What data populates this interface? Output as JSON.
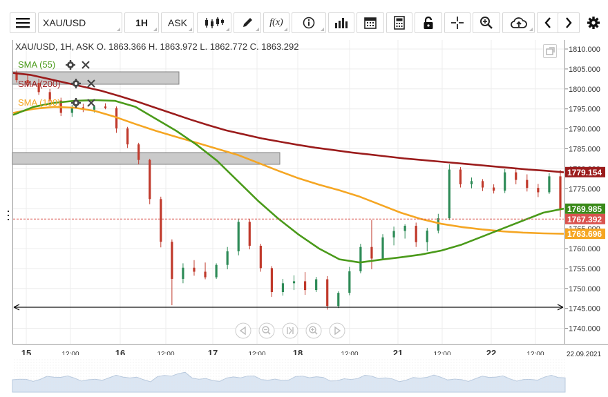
{
  "toolbar": {
    "symbol": "XAU/USD",
    "timeframe": "1H",
    "price_side": "ASK",
    "icons": [
      "menu-icon",
      "candlestick-icon",
      "draw-icon",
      "function-icon",
      "info-icon",
      "bar-volume-icon",
      "calendar-icon",
      "calculator-icon",
      "lock-icon",
      "crosshair-icon",
      "zoom-icon",
      "cloud-upload-icon",
      "arrow-left-icon",
      "arrow-right-icon",
      "gear-icon"
    ]
  },
  "info_line": "XAU/USD, 1H, ASK   O. 1863.366 H. 1863.972 L. 1862.772 C. 1863.292",
  "indicators": [
    {
      "label": "SMA (55)",
      "color": "#4a9a1a"
    },
    {
      "label": "SMA (200)",
      "color": "#9b1c1c"
    },
    {
      "label": "SMA (100)",
      "color": "#f5a623"
    }
  ],
  "chart_data": {
    "type": "candlestick",
    "y_axis": {
      "ticks": [
        "1810.000",
        "1805.000",
        "1800.000",
        "1795.000",
        "1790.000",
        "1785.000",
        "1780.000",
        "1775.000",
        "1770.000",
        "1765.000",
        "1760.000",
        "1755.000",
        "1750.000",
        "1745.000",
        "1740.000"
      ],
      "range": [
        1736.5,
        1812.3
      ]
    },
    "x_axis": {
      "ticks": [
        "15",
        "12:00",
        "16",
        "12:00",
        "17",
        "12:00",
        "18",
        "12:00",
        "21",
        "12:00",
        "22",
        "12:00",
        "22.09.2021"
      ]
    },
    "price_tags": [
      {
        "value": "1779.154",
        "bg": "#9b1c1c"
      },
      {
        "value": "1769.985",
        "bg": "#3a8a1a"
      },
      {
        "value": "1767.392",
        "bg": "#d9534f"
      },
      {
        "value": "1763.696",
        "bg": "#f5a623"
      }
    ],
    "horizontal_line_level": 1745.3,
    "dashed_line_level": 1767.392,
    "sma_200": [
      1804,
      1803.5,
      1802.5,
      1801.5,
      1800.5,
      1799.5,
      1798.2,
      1796.8,
      1795.3,
      1793.8,
      1792.3,
      1790.9,
      1789.6,
      1788.6,
      1787.6,
      1786.8,
      1786,
      1785.3,
      1784.7,
      1784.1,
      1783.6,
      1783.1,
      1782.6,
      1782.2,
      1781.8,
      1781.4,
      1781,
      1780.6,
      1780.2,
      1779.8,
      1779.5,
      1779.1
    ],
    "sma_100": [
      1794,
      1795,
      1795.5,
      1795.3,
      1794.5,
      1793,
      1791.2,
      1789.5,
      1788,
      1786.5,
      1785,
      1783.5,
      1781.5,
      1779.5,
      1777.6,
      1776,
      1774.6,
      1773,
      1771,
      1769,
      1767.4,
      1766.2,
      1765.4,
      1764.8,
      1764.3,
      1764,
      1763.8,
      1763.7
    ],
    "sma_55": [
      1793.5,
      1795.5,
      1796.5,
      1797,
      1797.2,
      1797,
      1795.5,
      1792.5,
      1789.5,
      1786,
      1782,
      1777,
      1772,
      1767.5,
      1763.5,
      1760,
      1757.3,
      1756.5,
      1757.2,
      1757.8,
      1758.5,
      1759.5,
      1761,
      1763,
      1765,
      1767,
      1769,
      1770
    ],
    "candles": [
      [
        1804,
        1804.6,
        1801.6,
        1802.2
      ],
      [
        1802.2,
        1803.5,
        1800.8,
        1801.5
      ],
      [
        1801.5,
        1802.5,
        1798.5,
        1799.2
      ],
      [
        1799.2,
        1800,
        1796.5,
        1797.1
      ],
      [
        1797.1,
        1797.8,
        1793.2,
        1794
      ],
      [
        1794,
        1796,
        1793,
        1795.4
      ],
      [
        1795.4,
        1796.3,
        1794.2,
        1794.8
      ],
      [
        1794.8,
        1795.9,
        1794.1,
        1795.6
      ],
      [
        1795.6,
        1796.4,
        1794.9,
        1795.2
      ],
      [
        1795.2,
        1795.6,
        1789,
        1790.1
      ],
      [
        1790.1,
        1790.5,
        1785.2,
        1786.1
      ],
      [
        1786.1,
        1786.5,
        1781.1,
        1782.2
      ],
      [
        1782.2,
        1782.5,
        1771.1,
        1772.4
      ],
      [
        1772.4,
        1773,
        1760.3,
        1761.7
      ],
      [
        1761.7,
        1762.3,
        1745.8,
        1752.4
      ],
      [
        1752.4,
        1756.3,
        1751.3,
        1755.2
      ],
      [
        1755.2,
        1757.1,
        1753.2,
        1754.2
      ],
      [
        1754.2,
        1756.5,
        1752.3,
        1752.8
      ],
      [
        1752.8,
        1756.3,
        1752.4,
        1755.9
      ],
      [
        1755.9,
        1760.4,
        1754.8,
        1759.3
      ],
      [
        1759.3,
        1767.5,
        1758.3,
        1766.7
      ],
      [
        1766.7,
        1767.4,
        1759.8,
        1760.7
      ],
      [
        1760.7,
        1761.2,
        1754.2,
        1755.1
      ],
      [
        1755.1,
        1755.6,
        1747.9,
        1749.1
      ],
      [
        1749.1,
        1752.4,
        1748.2,
        1751.3
      ],
      [
        1751.3,
        1753.3,
        1749.6,
        1751.8
      ],
      [
        1751.8,
        1754.1,
        1748.4,
        1749.6
      ],
      [
        1749.6,
        1752.9,
        1749.1,
        1752.3
      ],
      [
        1752.3,
        1753.1,
        1744.7,
        1745.6
      ],
      [
        1745.6,
        1749.3,
        1745.1,
        1748.9
      ],
      [
        1748.9,
        1755.4,
        1748.3,
        1754.3
      ],
      [
        1754.3,
        1761.2,
        1753.8,
        1760.4
      ],
      [
        1760.4,
        1767.2,
        1754.8,
        1757.5
      ],
      [
        1757.5,
        1763.6,
        1757.1,
        1762.8
      ],
      [
        1762.8,
        1765.5,
        1760.8,
        1764.4
      ],
      [
        1764.4,
        1766.1,
        1762.5,
        1765.7
      ],
      [
        1765.7,
        1766.5,
        1760.4,
        1761.6
      ],
      [
        1761.6,
        1765.2,
        1759.3,
        1764.5
      ],
      [
        1764.5,
        1768.7,
        1763.8,
        1767.6
      ],
      [
        1767.6,
        1781.1,
        1767.1,
        1779.8
      ],
      [
        1779.8,
        1780.4,
        1775.3,
        1776.1
      ],
      [
        1776.1,
        1777.8,
        1775.1,
        1776.9
      ],
      [
        1776.9,
        1777.4,
        1774.4,
        1775.3
      ],
      [
        1775.3,
        1776.1,
        1773.8,
        1774.5
      ],
      [
        1774.5,
        1779.9,
        1773.9,
        1779.1
      ],
      [
        1779.1,
        1780.2,
        1776.1,
        1777.2
      ],
      [
        1777.2,
        1778.6,
        1774.3,
        1775.2
      ],
      [
        1775.2,
        1776.2,
        1772.9,
        1774.1
      ],
      [
        1774.1,
        1778.9,
        1773.7,
        1778.1
      ],
      [
        1778.1,
        1779.7,
        1767.9,
        1769.8
      ]
    ]
  }
}
